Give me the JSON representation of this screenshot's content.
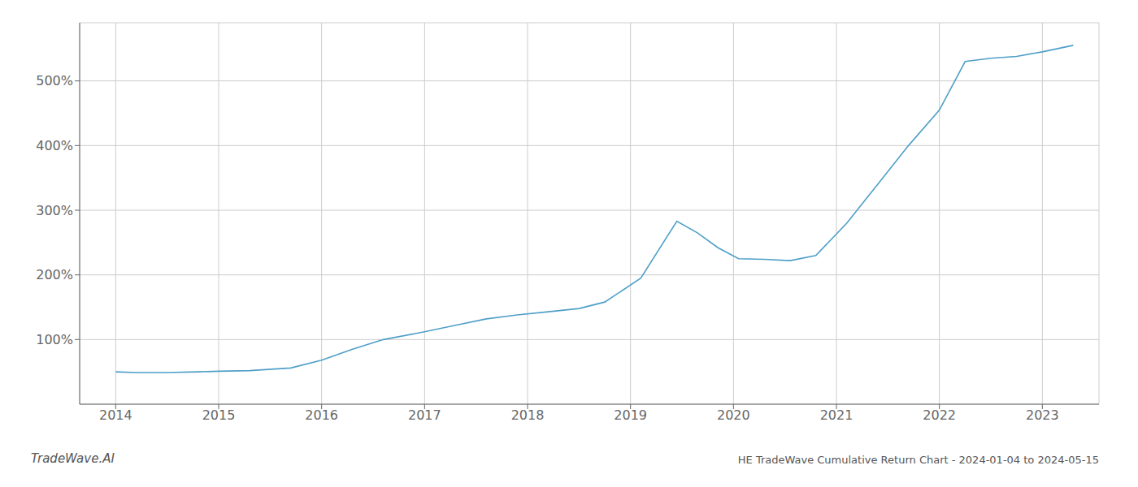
{
  "chart_data": {
    "type": "line",
    "title": "HE TradeWave Cumulative Return Chart - 2024-01-04 to 2024-05-15",
    "annotations": [
      "TradeWave.AI"
    ],
    "x": [
      2014.0,
      2014.2,
      2014.5,
      2014.8,
      2015.0,
      2015.3,
      2015.7,
      2016.0,
      2016.3,
      2016.6,
      2017.0,
      2017.3,
      2017.6,
      2017.9,
      2018.2,
      2018.5,
      2018.75,
      2019.1,
      2019.45,
      2019.65,
      2019.85,
      2020.05,
      2020.3,
      2020.55,
      2020.8,
      2021.1,
      2021.4,
      2021.7,
      2022.0,
      2022.25,
      2022.5,
      2022.75,
      2023.0,
      2023.3
    ],
    "values": [
      50,
      49,
      49,
      50,
      51,
      52,
      56,
      68,
      85,
      100,
      112,
      122,
      132,
      138,
      143,
      148,
      158,
      195,
      283,
      265,
      242,
      225,
      224,
      222,
      230,
      280,
      340,
      400,
      455,
      530,
      535,
      538,
      545,
      555
    ],
    "color": "#4f9fc8",
    "xlim": [
      2013.65,
      2023.55
    ],
    "xticks": [
      2014,
      2015,
      2016,
      2017,
      2018,
      2019,
      2020,
      2021,
      2022,
      2023
    ],
    "ylim": [
      0,
      590
    ],
    "yticks": [
      {
        "value": 100,
        "label": "100%"
      },
      {
        "value": 200,
        "label": "200%"
      },
      {
        "value": 300,
        "label": "300%"
      },
      {
        "value": 400,
        "label": "400%"
      },
      {
        "value": 500,
        "label": "500%"
      }
    ],
    "grid": true
  }
}
